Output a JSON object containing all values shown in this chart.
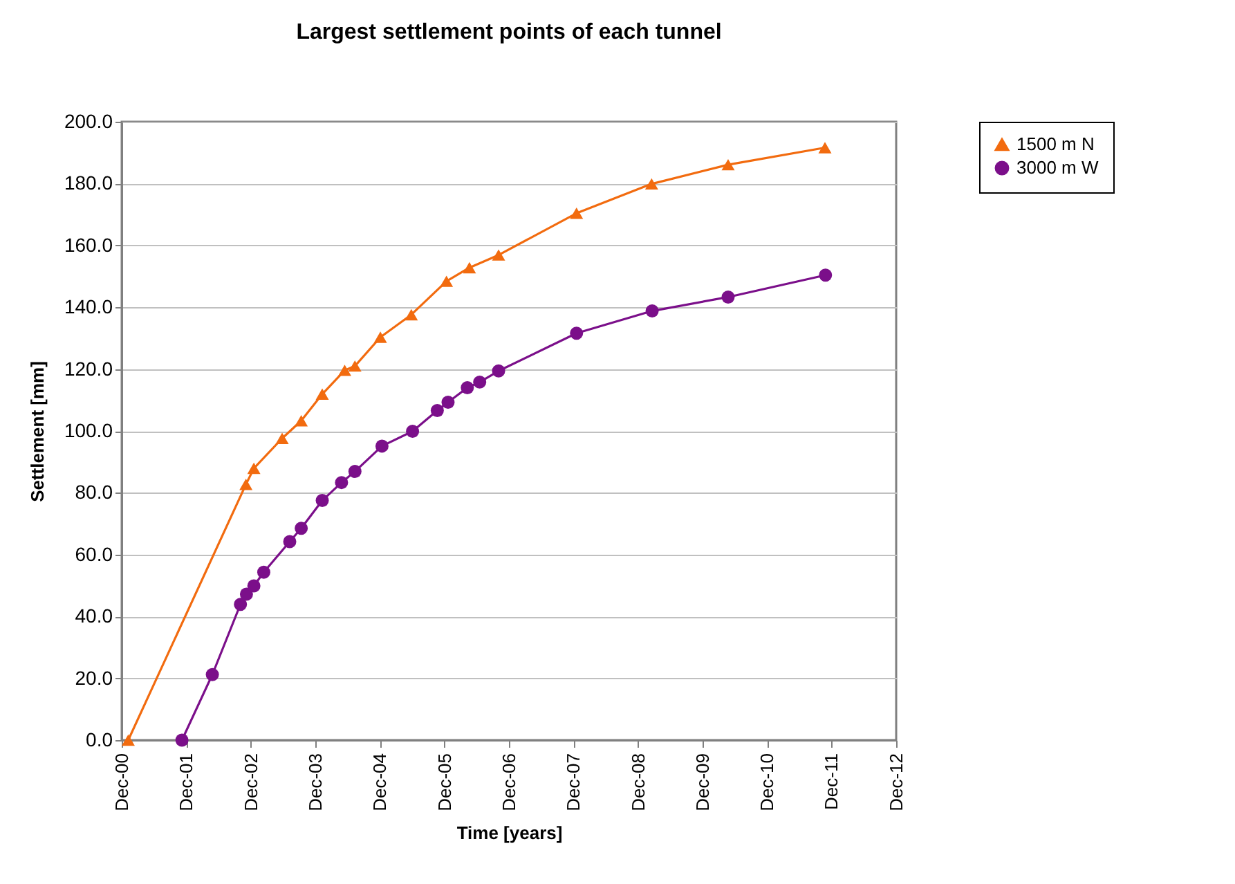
{
  "chart_data": {
    "type": "line",
    "title": "Largest settlement points of each tunnel",
    "xlabel": "Time [years]",
    "ylabel": "Settlement [mm]",
    "xlim": [
      "2000-12-01",
      "2012-12-01"
    ],
    "xticks": [
      {
        "value": "2000-12-01",
        "label": "Dec-00"
      },
      {
        "value": "2001-12-01",
        "label": "Dec-01"
      },
      {
        "value": "2002-12-01",
        "label": "Dec-02"
      },
      {
        "value": "2003-12-01",
        "label": "Dec-03"
      },
      {
        "value": "2004-12-01",
        "label": "Dec-04"
      },
      {
        "value": "2005-12-01",
        "label": "Dec-05"
      },
      {
        "value": "2006-12-01",
        "label": "Dec-06"
      },
      {
        "value": "2007-12-01",
        "label": "Dec-07"
      },
      {
        "value": "2008-12-01",
        "label": "Dec-08"
      },
      {
        "value": "2009-12-01",
        "label": "Dec-09"
      },
      {
        "value": "2010-12-01",
        "label": "Dec-10"
      },
      {
        "value": "2011-12-01",
        "label": "Dec-11"
      },
      {
        "value": "2012-12-01",
        "label": "Dec-12"
      }
    ],
    "ylim": [
      0,
      200
    ],
    "yticks": [
      {
        "value": 0,
        "label": "0.0"
      },
      {
        "value": 20,
        "label": "20.0"
      },
      {
        "value": 40,
        "label": "40.0"
      },
      {
        "value": 60,
        "label": "60.0"
      },
      {
        "value": 80,
        "label": "80.0"
      },
      {
        "value": 100,
        "label": "100.0"
      },
      {
        "value": 120,
        "label": "120.0"
      },
      {
        "value": 140,
        "label": "140.0"
      },
      {
        "value": 160,
        "label": "160.0"
      },
      {
        "value": 180,
        "label": "180.0"
      },
      {
        "value": 200,
        "label": "200.0"
      }
    ],
    "grid": "y",
    "legend": "right",
    "line_style": "solid",
    "series": [
      {
        "name": "1500 m N",
        "color": "#f26b0f",
        "marker": "triangle",
        "x": [
          "2001-01-07",
          "2002-11-04",
          "2002-12-19",
          "2003-05-28",
          "2003-09-13",
          "2004-01-10",
          "2004-05-16",
          "2004-07-13",
          "2004-12-04",
          "2005-05-28",
          "2005-12-13",
          "2006-04-22",
          "2006-10-04",
          "2007-12-19",
          "2009-02-16",
          "2010-04-25",
          "2011-10-25"
        ],
        "values": [
          0,
          82.7,
          87.9,
          97.6,
          103.3,
          111.9,
          119.6,
          121.0,
          130.3,
          137.6,
          148.4,
          152.8,
          156.9,
          170.4,
          179.9,
          186.1,
          191.6
        ]
      },
      {
        "name": "3000 m W",
        "color": "#7b0f8a",
        "marker": "circle",
        "x": [
          "2001-11-07",
          "2002-04-28",
          "2002-10-04",
          "2002-11-07",
          "2002-12-19",
          "2003-02-13",
          "2003-07-10",
          "2003-09-13",
          "2004-01-10",
          "2004-04-28",
          "2004-07-13",
          "2004-12-13",
          "2005-06-04",
          "2005-10-22",
          "2005-12-22",
          "2006-04-10",
          "2006-06-19",
          "2006-10-04",
          "2007-12-19",
          "2009-02-19",
          "2010-04-25",
          "2011-10-28"
        ],
        "values": [
          0,
          21.2,
          43.9,
          47.2,
          49.9,
          54.3,
          64.2,
          68.5,
          77.5,
          83.3,
          86.9,
          95.1,
          99.9,
          106.6,
          109.3,
          114.0,
          115.8,
          119.4,
          131.6,
          138.8,
          143.3,
          150.4
        ]
      }
    ]
  }
}
